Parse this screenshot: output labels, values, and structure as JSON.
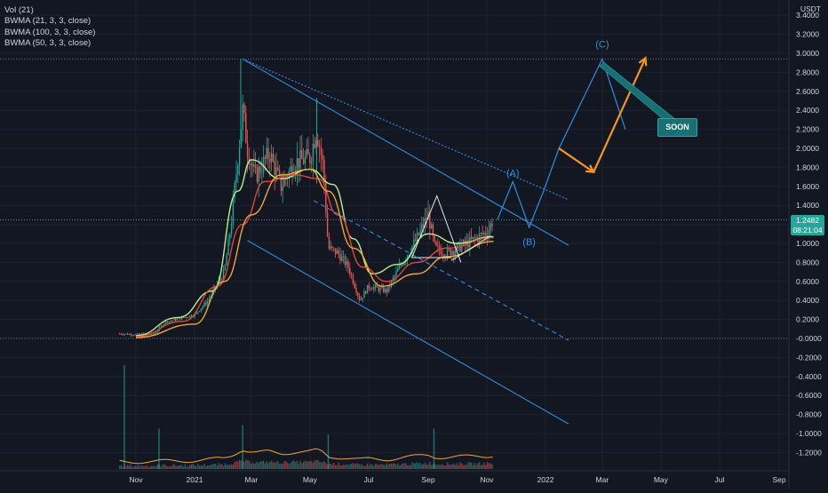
{
  "legend": {
    "vol": "Vol (21)",
    "bwma1": "BWMA (21, 3, 3, close)",
    "bwma2": "BWMA (100, 3, 3, close)",
    "bwma3": "BWMA (50, 3, 3, close)"
  },
  "currency": "USDT",
  "price_tag": {
    "price": "1.2482",
    "countdown": "08:21:04"
  },
  "annotations": {
    "wave_a": "(A)",
    "wave_b": "(B)",
    "wave_c": "(C)",
    "soon": "SOON"
  },
  "colors": {
    "background": "#131722",
    "up": "#26a69a",
    "down": "#ef5350",
    "channel": "#2f8fe0",
    "fast_ma": "#b6f18c",
    "mid_ma": "#f0a636",
    "slow_ma": "#e0452e",
    "forecast_orange": "#f7961e",
    "soon_bg": "#167074"
  },
  "chart_data": {
    "type": "candlestick",
    "y_tick_labels": [
      "3.4000",
      "3.2000",
      "3.0000",
      "2.8000",
      "2.6000",
      "2.4000",
      "2.2000",
      "2.0000",
      "1.8000",
      "1.6000",
      "1.4000",
      "1.2000",
      "1.0000",
      "0.8000",
      "0.6000",
      "0.4000",
      "0.2000",
      "-0.0000",
      "-0.2000",
      "-0.4000",
      "-0.6000",
      "-0.8000",
      "-1.0000",
      "-1.2000"
    ],
    "y_tick_values": [
      3.4,
      3.2,
      3.0,
      2.8,
      2.6,
      2.4,
      2.2,
      2.0,
      1.8,
      1.6,
      1.4,
      1.2,
      1.0,
      0.8,
      0.6,
      0.4,
      0.2,
      0.0,
      -0.2,
      -0.4,
      -0.6,
      -0.8,
      -1.0,
      -1.2
    ],
    "x_tick_labels": [
      "Nov",
      "2021",
      "Mar",
      "May",
      "Jul",
      "Sep",
      "Nov",
      "2022",
      "Mar",
      "May",
      "Jul",
      "Sep"
    ],
    "x_tick_dates": [
      "2020-11-01",
      "2021-01-01",
      "2021-03-01",
      "2021-05-01",
      "2021-07-01",
      "2021-09-01",
      "2021-11-01",
      "2022-01-01",
      "2022-03-01",
      "2022-05-01",
      "2022-07-01",
      "2022-09-01"
    ],
    "last_price": 1.2482,
    "ath_price": 2.94,
    "price_path": [
      [
        "2020-10-15",
        0.05
      ],
      [
        "2020-11-01",
        0.04
      ],
      [
        "2020-11-20",
        0.05
      ],
      [
        "2020-12-01",
        0.17
      ],
      [
        "2020-12-20",
        0.22
      ],
      [
        "2021-01-01",
        0.25
      ],
      [
        "2021-01-15",
        0.4
      ],
      [
        "2021-02-01",
        0.7
      ],
      [
        "2021-02-08",
        1.2
      ],
      [
        "2021-02-15",
        1.9
      ],
      [
        "2021-02-20",
        2.4
      ],
      [
        "2021-02-25",
        2.0
      ],
      [
        "2021-03-05",
        1.7
      ],
      [
        "2021-03-20",
        1.95
      ],
      [
        "2021-04-01",
        1.6
      ],
      [
        "2021-04-15",
        1.85
      ],
      [
        "2021-05-01",
        1.9
      ],
      [
        "2021-05-08",
        2.2
      ],
      [
        "2021-05-15",
        1.8
      ],
      [
        "2021-05-20",
        0.95
      ],
      [
        "2021-05-30",
        0.9
      ],
      [
        "2021-06-10",
        0.75
      ],
      [
        "2021-06-22",
        0.4
      ],
      [
        "2021-07-01",
        0.55
      ],
      [
        "2021-07-20",
        0.5
      ],
      [
        "2021-08-05",
        0.8
      ],
      [
        "2021-08-20",
        1.05
      ],
      [
        "2021-09-01",
        1.3
      ],
      [
        "2021-09-08",
        0.95
      ],
      [
        "2021-09-20",
        0.9
      ],
      [
        "2021-10-01",
        0.95
      ],
      [
        "2021-10-15",
        1.02
      ],
      [
        "2021-11-01",
        1.12
      ],
      [
        "2021-11-08",
        1.2482
      ]
    ],
    "moving_averages": [
      {
        "name": "BWMA (21, 3, 3, close)",
        "points": [
          [
            "2020-11-01",
            0.03
          ],
          [
            "2020-12-15",
            0.22
          ],
          [
            "2021-01-20",
            0.5
          ],
          [
            "2021-02-15",
            1.55
          ],
          [
            "2021-03-01",
            1.88
          ],
          [
            "2021-04-01",
            1.68
          ],
          [
            "2021-05-01",
            1.78
          ],
          [
            "2021-05-25",
            1.62
          ],
          [
            "2021-06-15",
            1.05
          ],
          [
            "2021-07-05",
            0.68
          ],
          [
            "2021-08-01",
            0.78
          ],
          [
            "2021-09-01",
            1.1
          ],
          [
            "2021-10-01",
            1.0
          ],
          [
            "2021-11-08",
            1.07
          ]
        ]
      },
      {
        "name": "BWMA (100, 3, 3, close)",
        "points": [
          [
            "2020-11-01",
            0.02
          ],
          [
            "2020-12-20",
            0.18
          ],
          [
            "2021-01-25",
            0.55
          ],
          [
            "2021-02-20",
            1.2
          ],
          [
            "2021-03-15",
            1.65
          ],
          [
            "2021-04-15",
            1.72
          ],
          [
            "2021-05-10",
            1.68
          ],
          [
            "2021-05-30",
            1.3
          ],
          [
            "2021-06-25",
            0.75
          ],
          [
            "2021-07-20",
            0.6
          ],
          [
            "2021-08-20",
            0.8
          ],
          [
            "2021-09-20",
            0.95
          ],
          [
            "2021-11-08",
            1.06
          ]
        ]
      },
      {
        "name": "BWMA (50, 3, 3, close)",
        "points": [
          [
            "2020-11-01",
            0.01
          ],
          [
            "2021-01-01",
            0.15
          ],
          [
            "2021-02-01",
            0.6
          ],
          [
            "2021-03-01",
            1.3
          ],
          [
            "2021-04-01",
            1.72
          ],
          [
            "2021-05-01",
            1.78
          ],
          [
            "2021-05-20",
            1.55
          ],
          [
            "2021-06-15",
            0.95
          ],
          [
            "2021-07-15",
            0.55
          ],
          [
            "2021-08-20",
            0.68
          ],
          [
            "2021-09-20",
            0.86
          ],
          [
            "2021-11-08",
            1.02
          ]
        ]
      }
    ],
    "channel": {
      "upper": [
        [
          "2021-02-20",
          2.94
        ],
        [
          "2022-01-25",
          0.98
        ]
      ],
      "lower": [
        [
          "2021-02-25",
          1.03
        ],
        [
          "2022-01-25",
          -0.9
        ]
      ],
      "mid_dotted": [
        [
          "2021-02-20",
          2.94
        ],
        [
          "2022-01-25",
          1.46
        ]
      ],
      "mid_dashed": [
        [
          "2021-05-05",
          1.45
        ],
        [
          "2022-01-25",
          -0.02
        ]
      ]
    },
    "wave_forecast": [
      [
        "2021-11-12",
        1.25
      ],
      [
        "2021-11-28",
        1.65
      ],
      [
        "2021-12-15",
        1.17
      ],
      [
        "2021-12-30",
        1.55
      ],
      [
        "2022-01-15",
        2.0
      ],
      [
        "2022-03-01",
        2.94
      ],
      [
        "2022-03-25",
        2.2
      ]
    ],
    "forecast_arrows": [
      [
        [
          "2022-01-15",
          2.0
        ],
        [
          "2022-02-20",
          1.75
        ]
      ],
      [
        [
          "2022-02-20",
          1.75
        ],
        [
          "2022-04-15",
          2.95
        ]
      ]
    ],
    "volume": {
      "baseline_label": "-1.2000",
      "notable_bars": [
        [
          "2020-10-20",
          0.9
        ],
        [
          "2020-11-25",
          0.35
        ],
        [
          "2021-02-20",
          0.38
        ],
        [
          "2021-05-20",
          0.3
        ],
        [
          "2021-09-07",
          0.35
        ]
      ]
    }
  }
}
